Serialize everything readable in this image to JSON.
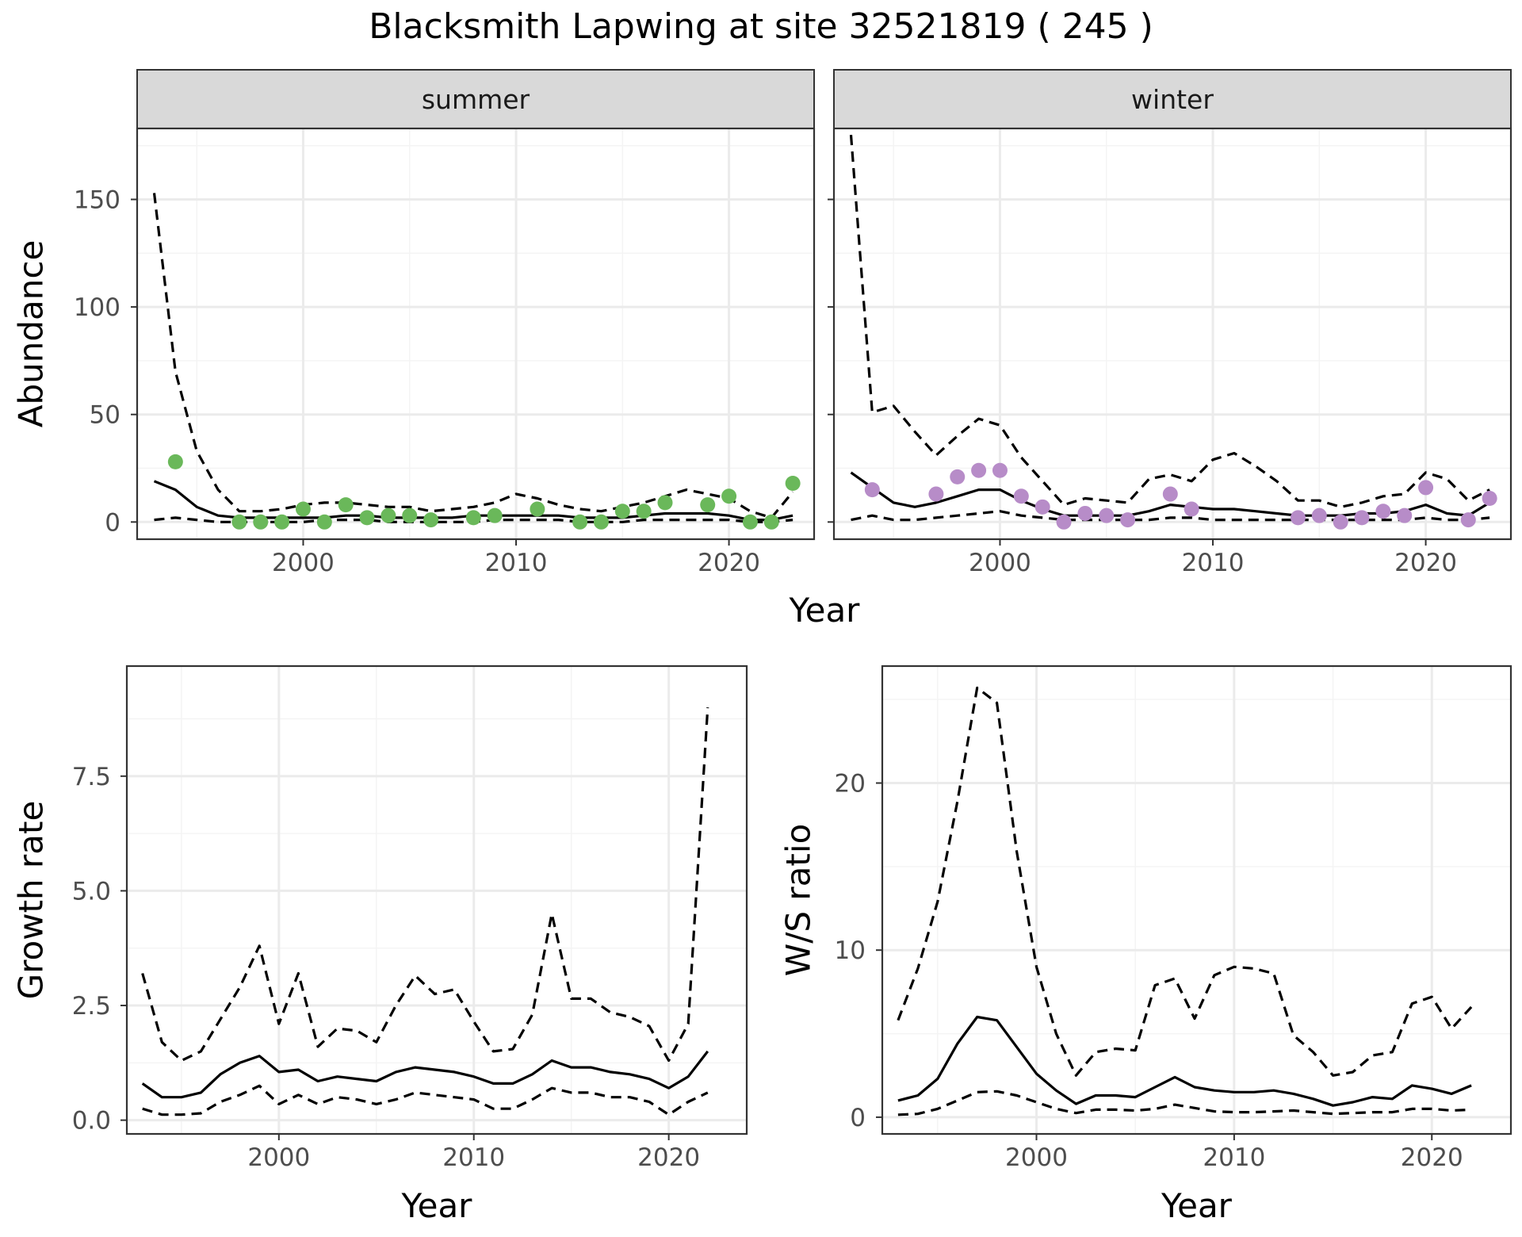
{
  "figure": {
    "title": "Blacksmith Lapwing at site 32521819 ( 245 )"
  },
  "colors": {
    "summer_points": "#6ab85a",
    "winter_points": "#b78cc8",
    "line": "#000000",
    "strip_fill": "#d9d9d9",
    "grid_major": "#ebebeb",
    "grid_minor": "#f4f4f4"
  },
  "chart_data": [
    {
      "type": "line",
      "panel": "summer",
      "strip_label": "summer",
      "xlabel": "Year",
      "ylabel": "Abundance",
      "xlim": [
        1992.2,
        2024.0
      ],
      "ylim": [
        -8,
        183
      ],
      "x_ticks": [
        2000,
        2010,
        2020
      ],
      "y_ticks": [
        0,
        50,
        100,
        150
      ],
      "grid": true,
      "shared_xlabel": "Year",
      "line_x": [
        1993,
        1994,
        1995,
        1996,
        1997,
        1998,
        1999,
        2000,
        2001,
        2002,
        2003,
        2004,
        2005,
        2006,
        2007,
        2008,
        2009,
        2010,
        2011,
        2012,
        2013,
        2014,
        2015,
        2016,
        2017,
        2018,
        2019,
        2020,
        2021,
        2022,
        2023
      ],
      "series": [
        {
          "name": "",
          "style": "solid",
          "values": [
            19,
            15,
            7,
            3,
            2,
            2,
            2,
            2,
            2,
            3,
            3,
            2,
            2,
            2,
            2,
            3,
            3,
            3,
            3,
            3,
            2,
            2,
            2,
            3,
            4,
            4,
            4,
            3,
            1,
            1,
            3
          ]
        },
        {
          "name": "",
          "style": "dashed",
          "values": [
            153,
            70,
            33,
            15,
            5,
            5,
            6,
            8,
            9,
            9,
            8,
            7,
            7,
            5,
            6,
            7,
            9,
            13,
            11,
            8,
            6,
            5,
            7,
            9,
            12,
            15,
            13,
            11,
            5,
            2,
            14
          ]
        },
        {
          "name": "",
          "style": "dashed",
          "values": [
            1,
            2,
            1,
            0,
            0,
            0,
            0,
            0,
            1,
            1,
            1,
            0,
            0,
            0,
            0,
            0,
            1,
            1,
            1,
            1,
            0,
            0,
            0,
            1,
            1,
            1,
            1,
            1,
            0,
            0,
            1
          ]
        }
      ],
      "points_x": [
        1994,
        1997,
        1998,
        1999,
        2000,
        2001,
        2002,
        2003,
        2004,
        2005,
        2006,
        2008,
        2009,
        2011,
        2013,
        2014,
        2015,
        2016,
        2017,
        2019,
        2020,
        2021,
        2022,
        2023
      ],
      "points_y": [
        28,
        0,
        0,
        0,
        6,
        0,
        8,
        2,
        3,
        3,
        1,
        2,
        3,
        6,
        0,
        0,
        5,
        5,
        9,
        8,
        12,
        0,
        0,
        18
      ]
    },
    {
      "type": "line",
      "panel": "winter",
      "strip_label": "winter",
      "xlabel": "Year",
      "ylabel": "",
      "xlim": [
        1992.2,
        2024.0
      ],
      "ylim": [
        -8,
        183
      ],
      "x_ticks": [
        2000,
        2010,
        2020
      ],
      "y_ticks": [
        0,
        50,
        100,
        150
      ],
      "grid": true,
      "line_x": [
        1993,
        1994,
        1995,
        1996,
        1997,
        1998,
        1999,
        2000,
        2001,
        2002,
        2003,
        2004,
        2005,
        2006,
        2007,
        2008,
        2009,
        2010,
        2011,
        2012,
        2013,
        2014,
        2015,
        2016,
        2017,
        2018,
        2019,
        2020,
        2021,
        2022,
        2023
      ],
      "series": [
        {
          "name": "",
          "style": "solid",
          "values": [
            23,
            16,
            9,
            7,
            9,
            12,
            15,
            15,
            10,
            6,
            3,
            3,
            3,
            3,
            5,
            8,
            7,
            6,
            6,
            5,
            4,
            3,
            3,
            3,
            4,
            4,
            5,
            8,
            4,
            3,
            9
          ]
        },
        {
          "name": "",
          "style": "dashed",
          "values": [
            180,
            51,
            54,
            42,
            31,
            40,
            48,
            45,
            30,
            19,
            8,
            11,
            10,
            9,
            20,
            22,
            19,
            29,
            32,
            26,
            19,
            10,
            10,
            7,
            9,
            12,
            13,
            23,
            20,
            10,
            15
          ]
        },
        {
          "name": "",
          "style": "dashed",
          "values": [
            1,
            3,
            1,
            1,
            2,
            3,
            4,
            5,
            3,
            2,
            1,
            1,
            1,
            1,
            1,
            2,
            2,
            1,
            1,
            1,
            1,
            1,
            1,
            1,
            1,
            1,
            1,
            2,
            1,
            1,
            2
          ]
        }
      ],
      "points_x": [
        1994,
        1997,
        1998,
        1999,
        2000,
        2001,
        2002,
        2003,
        2004,
        2005,
        2006,
        2008,
        2009,
        2014,
        2015,
        2016,
        2017,
        2018,
        2019,
        2020,
        2022,
        2023
      ],
      "points_y": [
        15,
        13,
        21,
        24,
        24,
        12,
        7,
        0,
        4,
        3,
        1,
        13,
        6,
        2,
        3,
        0,
        2,
        5,
        3,
        16,
        1,
        11
      ]
    },
    {
      "type": "line",
      "panel": "growth",
      "xlabel": "Year",
      "ylabel": "Growth rate",
      "xlim": [
        1992.2,
        2024.0
      ],
      "ylim": [
        -0.3,
        9.9
      ],
      "x_ticks": [
        2000,
        2010,
        2020
      ],
      "y_ticks": [
        0.0,
        2.5,
        5.0,
        7.5
      ],
      "y_tick_labels": [
        "0.0",
        "2.5",
        "5.0",
        "7.5"
      ],
      "grid": true,
      "line_x": [
        1993,
        1994,
        1995,
        1996,
        1997,
        1998,
        1999,
        2000,
        2001,
        2002,
        2003,
        2004,
        2005,
        2006,
        2007,
        2008,
        2009,
        2010,
        2011,
        2012,
        2013,
        2014,
        2015,
        2016,
        2017,
        2018,
        2019,
        2020,
        2021,
        2022
      ],
      "series": [
        {
          "name": "",
          "style": "solid",
          "values": [
            0.8,
            0.5,
            0.5,
            0.6,
            1.0,
            1.25,
            1.4,
            1.05,
            1.1,
            0.85,
            0.95,
            0.9,
            0.85,
            1.05,
            1.15,
            1.1,
            1.05,
            0.95,
            0.8,
            0.8,
            1.0,
            1.3,
            1.15,
            1.15,
            1.05,
            1.0,
            0.9,
            0.7,
            0.95,
            1.5
          ]
        },
        {
          "name": "",
          "style": "dashed",
          "values": [
            3.2,
            1.7,
            1.3,
            1.5,
            2.2,
            2.9,
            3.8,
            2.1,
            3.2,
            1.6,
            2.0,
            1.95,
            1.7,
            2.5,
            3.15,
            2.75,
            2.85,
            2.15,
            1.5,
            1.55,
            2.3,
            4.5,
            2.65,
            2.65,
            2.35,
            2.25,
            2.05,
            1.3,
            2.1,
            9.0
          ]
        },
        {
          "name": "",
          "style": "dashed",
          "values": [
            0.25,
            0.12,
            0.12,
            0.15,
            0.4,
            0.55,
            0.75,
            0.35,
            0.55,
            0.35,
            0.5,
            0.45,
            0.35,
            0.45,
            0.6,
            0.55,
            0.5,
            0.45,
            0.25,
            0.25,
            0.45,
            0.7,
            0.6,
            0.6,
            0.5,
            0.5,
            0.4,
            0.12,
            0.4,
            0.6
          ]
        }
      ]
    },
    {
      "type": "line",
      "panel": "ws",
      "xlabel": "Year",
      "ylabel": "W/S ratio",
      "xlim": [
        1992.2,
        2024.0
      ],
      "ylim": [
        -1.0,
        27.0
      ],
      "x_ticks": [
        2000,
        2010,
        2020
      ],
      "y_ticks": [
        0,
        10,
        20
      ],
      "grid": true,
      "line_x": [
        1993,
        1994,
        1995,
        1996,
        1997,
        1998,
        1999,
        2000,
        2001,
        2002,
        2003,
        2004,
        2005,
        2006,
        2007,
        2008,
        2009,
        2010,
        2011,
        2012,
        2013,
        2014,
        2015,
        2016,
        2017,
        2018,
        2019,
        2020,
        2021,
        2022
      ],
      "series": [
        {
          "name": "",
          "style": "solid",
          "values": [
            1.0,
            1.3,
            2.3,
            4.4,
            6.0,
            5.8,
            4.2,
            2.6,
            1.6,
            0.8,
            1.3,
            1.3,
            1.2,
            1.8,
            2.4,
            1.8,
            1.6,
            1.5,
            1.5,
            1.6,
            1.4,
            1.1,
            0.7,
            0.9,
            1.2,
            1.1,
            1.9,
            1.7,
            1.4,
            1.9
          ]
        },
        {
          "name": "",
          "style": "dashed",
          "values": [
            5.8,
            8.9,
            12.9,
            18.9,
            25.7,
            24.8,
            15.9,
            9.0,
            5.0,
            2.5,
            3.9,
            4.1,
            4.0,
            7.9,
            8.3,
            5.9,
            8.5,
            9.0,
            8.9,
            8.6,
            4.9,
            3.9,
            2.5,
            2.7,
            3.7,
            3.9,
            6.8,
            7.2,
            5.3,
            6.6
          ]
        },
        {
          "name": "",
          "style": "dashed",
          "values": [
            0.15,
            0.2,
            0.5,
            1.0,
            1.5,
            1.55,
            1.3,
            0.9,
            0.5,
            0.25,
            0.45,
            0.45,
            0.4,
            0.5,
            0.75,
            0.55,
            0.35,
            0.3,
            0.3,
            0.35,
            0.4,
            0.3,
            0.2,
            0.25,
            0.3,
            0.3,
            0.5,
            0.5,
            0.4,
            0.45
          ]
        }
      ]
    }
  ]
}
